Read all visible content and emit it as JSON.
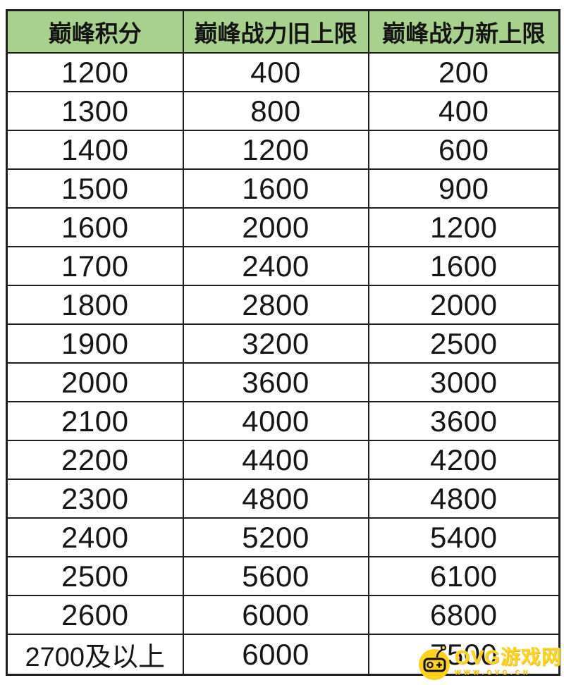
{
  "table": {
    "headers": [
      "巅峰积分",
      "巅峰战力旧上限",
      "巅峰战力新上限"
    ],
    "rows": [
      [
        "1200",
        "400",
        "200"
      ],
      [
        "1300",
        "800",
        "400"
      ],
      [
        "1400",
        "1200",
        "600"
      ],
      [
        "1500",
        "1600",
        "900"
      ],
      [
        "1600",
        "2000",
        "1200"
      ],
      [
        "1700",
        "2400",
        "1600"
      ],
      [
        "1800",
        "2800",
        "2000"
      ],
      [
        "1900",
        "3200",
        "2500"
      ],
      [
        "2000",
        "3600",
        "3000"
      ],
      [
        "2100",
        "4000",
        "3600"
      ],
      [
        "2200",
        "4400",
        "4200"
      ],
      [
        "2300",
        "4800",
        "4800"
      ],
      [
        "2400",
        "5200",
        "5400"
      ],
      [
        "2500",
        "5600",
        "6100"
      ],
      [
        "2600",
        "6000",
        "6800"
      ],
      [
        "2700及以上",
        "6000",
        "7500"
      ]
    ],
    "colors": {
      "header_bg": "#a9d18e",
      "border": "#1f1f1f",
      "text": "#161616"
    }
  },
  "watermark": {
    "site_name": "OVG游戏网",
    "site_url": "WWW.OVG.CN",
    "accent_color": "#ffd21e",
    "icon": "gamepad-icon"
  },
  "chart_data": {
    "type": "table",
    "title": "",
    "columns": [
      "巅峰积分",
      "巅峰战力旧上限",
      "巅峰战力新上限"
    ],
    "rows": [
      [
        "1200",
        400,
        200
      ],
      [
        "1300",
        800,
        400
      ],
      [
        "1400",
        1200,
        600
      ],
      [
        "1500",
        1600,
        900
      ],
      [
        "1600",
        2000,
        1200
      ],
      [
        "1700",
        2400,
        1600
      ],
      [
        "1800",
        2800,
        2000
      ],
      [
        "1900",
        3200,
        2500
      ],
      [
        "2000",
        3600,
        3000
      ],
      [
        "2100",
        4000,
        3600
      ],
      [
        "2200",
        4400,
        4200
      ],
      [
        "2300",
        4800,
        4800
      ],
      [
        "2400",
        5200,
        5400
      ],
      [
        "2500",
        5600,
        6100
      ],
      [
        "2600",
        6000,
        6800
      ],
      [
        "2700及以上",
        6000,
        7500
      ]
    ],
    "layout_hints": {
      "header_background": "#a9d18e",
      "grid": true,
      "cell_alignment": "center"
    }
  }
}
